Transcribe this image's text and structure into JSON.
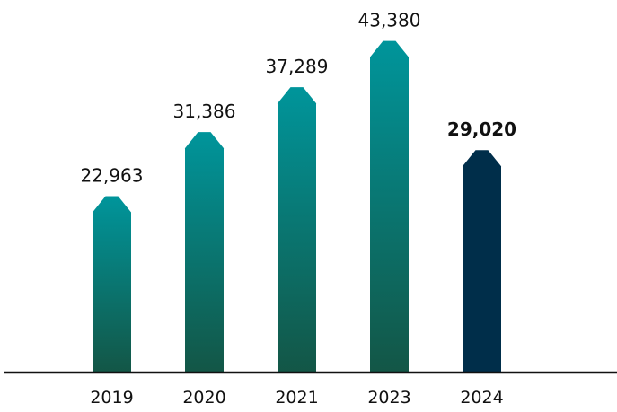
{
  "chart_data": {
    "type": "bar",
    "title": "",
    "xlabel": "",
    "ylabel": "",
    "categories": [
      "2019",
      "2020",
      "2021",
      "2023",
      "2024"
    ],
    "values": [
      22963,
      31386,
      37289,
      43380,
      29020
    ],
    "value_labels": [
      "22,963",
      "31,386",
      "37,289",
      "43,380",
      "29,020"
    ],
    "highlight_index": 4,
    "ylim": [
      0,
      49000
    ],
    "grid": false,
    "legend": "none",
    "colors": {
      "gradient_top": "#00959B",
      "gradient_bottom": "#135646",
      "highlight": "#002E4A",
      "axis": "#111111",
      "text": "#111111"
    }
  }
}
